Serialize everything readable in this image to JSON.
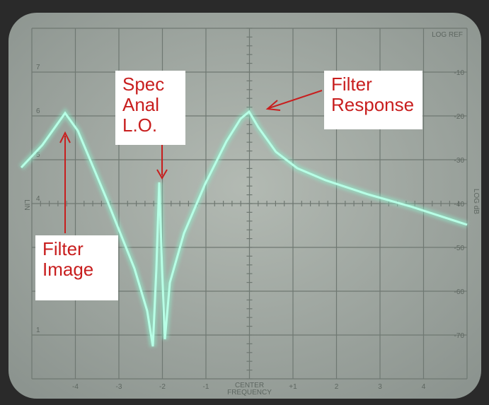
{
  "screen": {
    "top_right_label": "LOG REF",
    "left_axis_label": "LIN",
    "right_axis_label": "LOG dB",
    "center_label": [
      "CENTER",
      "FREQUENCY"
    ],
    "x_labels": [
      "-4",
      "-3",
      "-2",
      "-1",
      "+1",
      "2",
      "3",
      "4"
    ],
    "right_scale": [
      "-10",
      "-20",
      "-30",
      "-40",
      "-50",
      "-60",
      "-70"
    ],
    "left_scale": [
      "7",
      "6",
      "5",
      "4",
      "1"
    ]
  },
  "annotations": [
    {
      "lines": [
        "Spec",
        "Anal",
        "L.O."
      ]
    },
    {
      "lines": [
        "Filter",
        "Response"
      ]
    },
    {
      "lines": [
        "Filter",
        "Image"
      ]
    }
  ]
}
